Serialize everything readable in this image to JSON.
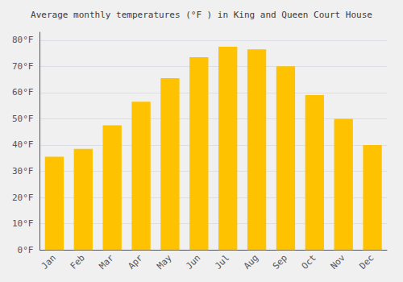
{
  "chart_data": {
    "type": "bar",
    "title": "Average monthly temperatures (°F ) in King and Queen Court House",
    "categories": [
      "Jan",
      "Feb",
      "Mar",
      "Apr",
      "May",
      "Jun",
      "Jul",
      "Aug",
      "Sep",
      "Oct",
      "Nov",
      "Dec"
    ],
    "values": [
      35.5,
      38.5,
      47.5,
      56.5,
      65.5,
      73.5,
      77.5,
      76.5,
      70.0,
      59.0,
      50.0,
      40.0
    ],
    "color": "#FFC200",
    "ylim": [
      0,
      83
    ],
    "yticks": [
      {
        "value": 0,
        "label": "0°F"
      },
      {
        "value": 10,
        "label": "10°F"
      },
      {
        "value": 20,
        "label": "20°F"
      },
      {
        "value": 30,
        "label": "30°F"
      },
      {
        "value": 40,
        "label": "40°F"
      },
      {
        "value": 50,
        "label": "50°F"
      },
      {
        "value": 60,
        "label": "60°F"
      },
      {
        "value": 70,
        "label": "70°F"
      },
      {
        "value": 80,
        "label": "80°F"
      }
    ],
    "grid": true
  }
}
